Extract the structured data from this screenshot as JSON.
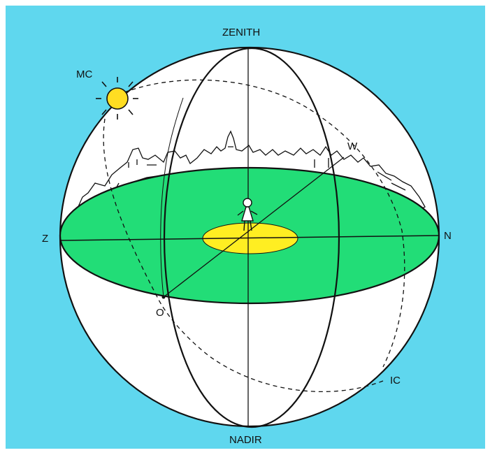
{
  "labels": {
    "zenith": "ZENITH",
    "nadir": "NADIR",
    "mc": "MC",
    "w": "W",
    "z": "Z",
    "n": "N",
    "o": "O",
    "ic": "IC"
  },
  "colors": {
    "background": "#5fd7ee",
    "sphere": "#ffffff",
    "horizon_plane": "#22dd77",
    "observer_disc": "#ffee22",
    "sun": "#ffdd22",
    "ink": "#111111"
  }
}
